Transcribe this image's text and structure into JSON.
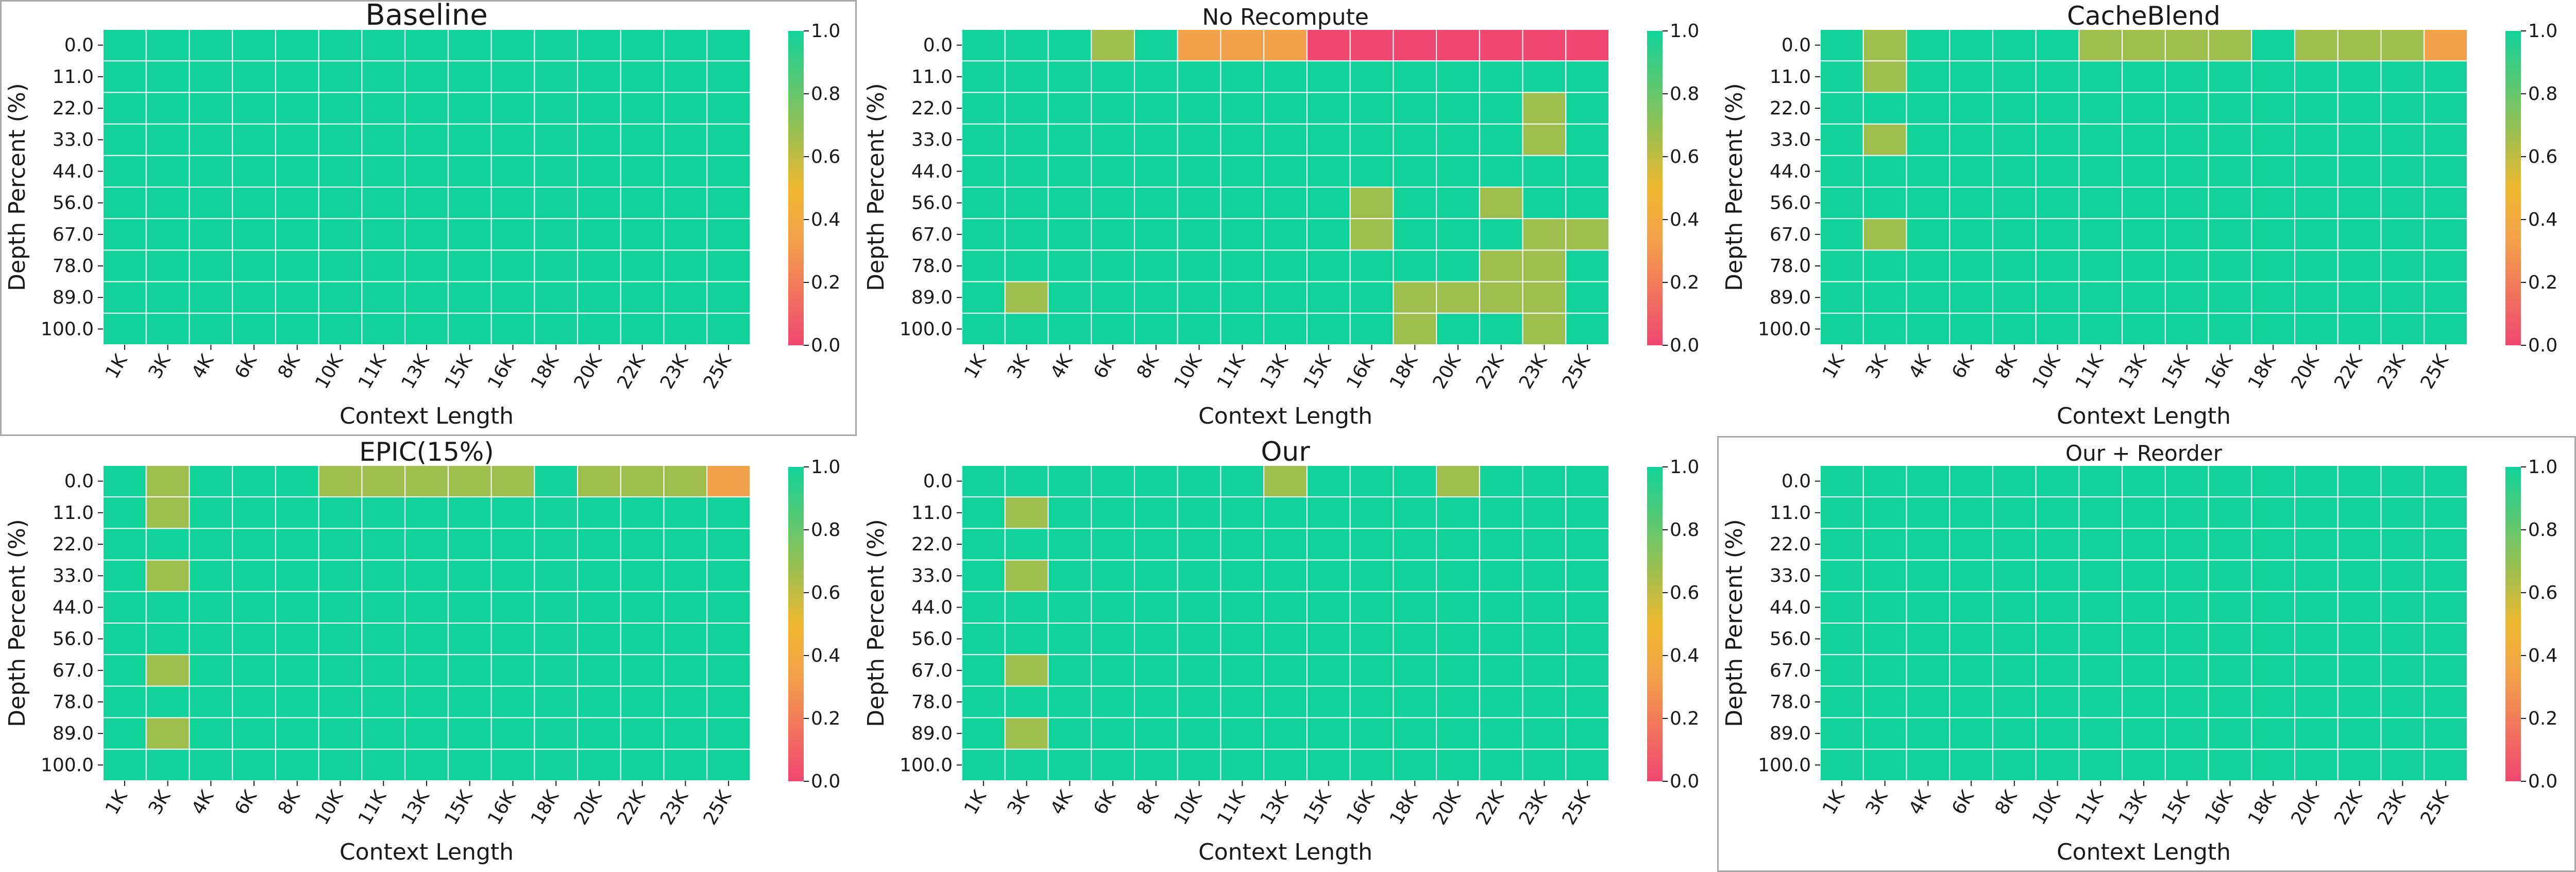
{
  "colors": {
    "cmap": [
      "#f04770",
      "#f3a04a",
      "#f0b82e",
      "#9ebf4e",
      "#10d399"
    ],
    "grid": "#ffffff",
    "text": "#1a1a1a"
  },
  "shared": {
    "xlabel": "Context Length",
    "ylabel": "Depth Percent (%)",
    "x_ticks": [
      "1K",
      "3K",
      "4K",
      "6K",
      "8K",
      "10K",
      "11K",
      "13K",
      "15K",
      "16K",
      "18K",
      "20K",
      "22K",
      "23K",
      "25K"
    ],
    "y_ticks": [
      "0.0",
      "11.0",
      "22.0",
      "33.0",
      "44.0",
      "56.0",
      "67.0",
      "78.0",
      "89.0",
      "100.0"
    ],
    "colorbar_ticks": [
      "0.0",
      "0.2",
      "0.4",
      "0.6",
      "0.8",
      "1.0"
    ],
    "colorbar_range": [
      0,
      1
    ]
  },
  "chart_data": [
    {
      "type": "heatmap",
      "title": "Baseline",
      "values": [
        [
          1,
          1,
          1,
          1,
          1,
          1,
          1,
          1,
          1,
          1,
          1,
          1,
          1,
          1,
          1
        ],
        [
          1,
          1,
          1,
          1,
          1,
          1,
          1,
          1,
          1,
          1,
          1,
          1,
          1,
          1,
          1
        ],
        [
          1,
          1,
          1,
          1,
          1,
          1,
          1,
          1,
          1,
          1,
          1,
          1,
          1,
          1,
          1
        ],
        [
          1,
          1,
          1,
          1,
          1,
          1,
          1,
          1,
          1,
          1,
          1,
          1,
          1,
          1,
          1
        ],
        [
          1,
          1,
          1,
          1,
          1,
          1,
          1,
          1,
          1,
          1,
          1,
          1,
          1,
          1,
          1
        ],
        [
          1,
          1,
          1,
          1,
          1,
          1,
          1,
          1,
          1,
          1,
          1,
          1,
          1,
          1,
          1
        ],
        [
          1,
          1,
          1,
          1,
          1,
          1,
          1,
          1,
          1,
          1,
          1,
          1,
          1,
          1,
          1
        ],
        [
          1,
          1,
          1,
          1,
          1,
          1,
          1,
          1,
          1,
          1,
          1,
          1,
          1,
          1,
          1
        ],
        [
          1,
          1,
          1,
          1,
          1,
          1,
          1,
          1,
          1,
          1,
          1,
          1,
          1,
          1,
          1
        ],
        [
          1,
          1,
          1,
          1,
          1,
          1,
          1,
          1,
          1,
          1,
          1,
          1,
          1,
          1,
          1
        ]
      ]
    },
    {
      "type": "heatmap",
      "title": "No Recompute",
      "values": [
        [
          1,
          1,
          1,
          0.67,
          1,
          0.33,
          0.33,
          0.33,
          0,
          0,
          0,
          0,
          0,
          0,
          0
        ],
        [
          1,
          1,
          1,
          1,
          1,
          1,
          1,
          1,
          1,
          1,
          1,
          1,
          1,
          1,
          1
        ],
        [
          1,
          1,
          1,
          1,
          1,
          1,
          1,
          1,
          1,
          1,
          1,
          1,
          1,
          0.67,
          1
        ],
        [
          1,
          1,
          1,
          1,
          1,
          1,
          1,
          1,
          1,
          1,
          1,
          1,
          1,
          0.67,
          1
        ],
        [
          1,
          1,
          1,
          1,
          1,
          1,
          1,
          1,
          1,
          1,
          1,
          1,
          1,
          1,
          1
        ],
        [
          1,
          1,
          1,
          1,
          1,
          1,
          1,
          1,
          1,
          0.67,
          1,
          1,
          0.67,
          1,
          1
        ],
        [
          1,
          1,
          1,
          1,
          1,
          1,
          1,
          1,
          1,
          0.67,
          1,
          1,
          1,
          0.67,
          0.67
        ],
        [
          1,
          1,
          1,
          1,
          1,
          1,
          1,
          1,
          1,
          1,
          1,
          1,
          0.67,
          0.67,
          1
        ],
        [
          1,
          0.67,
          1,
          1,
          1,
          1,
          1,
          1,
          1,
          1,
          0.67,
          0.67,
          0.67,
          0.67,
          1
        ],
        [
          1,
          1,
          1,
          1,
          1,
          1,
          1,
          1,
          1,
          1,
          0.67,
          1,
          1,
          0.67,
          1
        ]
      ]
    },
    {
      "type": "heatmap",
      "title": "CacheBlend",
      "values": [
        [
          1,
          0.67,
          1,
          1,
          1,
          1,
          0.67,
          0.67,
          0.67,
          0.67,
          1,
          0.67,
          0.67,
          0.67,
          0.33
        ],
        [
          1,
          0.67,
          1,
          1,
          1,
          1,
          1,
          1,
          1,
          1,
          1,
          1,
          1,
          1,
          1
        ],
        [
          1,
          1,
          1,
          1,
          1,
          1,
          1,
          1,
          1,
          1,
          1,
          1,
          1,
          1,
          1
        ],
        [
          1,
          0.67,
          1,
          1,
          1,
          1,
          1,
          1,
          1,
          1,
          1,
          1,
          1,
          1,
          1
        ],
        [
          1,
          1,
          1,
          1,
          1,
          1,
          1,
          1,
          1,
          1,
          1,
          1,
          1,
          1,
          1
        ],
        [
          1,
          1,
          1,
          1,
          1,
          1,
          1,
          1,
          1,
          1,
          1,
          1,
          1,
          1,
          1
        ],
        [
          1,
          0.67,
          1,
          1,
          1,
          1,
          1,
          1,
          1,
          1,
          1,
          1,
          1,
          1,
          1
        ],
        [
          1,
          1,
          1,
          1,
          1,
          1,
          1,
          1,
          1,
          1,
          1,
          1,
          1,
          1,
          1
        ],
        [
          1,
          1,
          1,
          1,
          1,
          1,
          1,
          1,
          1,
          1,
          1,
          1,
          1,
          1,
          1
        ],
        [
          1,
          1,
          1,
          1,
          1,
          1,
          1,
          1,
          1,
          1,
          1,
          1,
          1,
          1,
          1
        ]
      ]
    },
    {
      "type": "heatmap",
      "title": "EPIC(15%)",
      "values": [
        [
          1,
          0.67,
          1,
          1,
          1,
          0.67,
          0.67,
          0.67,
          0.67,
          0.67,
          1,
          0.67,
          0.67,
          0.67,
          0.33
        ],
        [
          1,
          0.67,
          1,
          1,
          1,
          1,
          1,
          1,
          1,
          1,
          1,
          1,
          1,
          1,
          1
        ],
        [
          1,
          1,
          1,
          1,
          1,
          1,
          1,
          1,
          1,
          1,
          1,
          1,
          1,
          1,
          1
        ],
        [
          1,
          0.67,
          1,
          1,
          1,
          1,
          1,
          1,
          1,
          1,
          1,
          1,
          1,
          1,
          1
        ],
        [
          1,
          1,
          1,
          1,
          1,
          1,
          1,
          1,
          1,
          1,
          1,
          1,
          1,
          1,
          1
        ],
        [
          1,
          1,
          1,
          1,
          1,
          1,
          1,
          1,
          1,
          1,
          1,
          1,
          1,
          1,
          1
        ],
        [
          1,
          0.67,
          1,
          1,
          1,
          1,
          1,
          1,
          1,
          1,
          1,
          1,
          1,
          1,
          1
        ],
        [
          1,
          1,
          1,
          1,
          1,
          1,
          1,
          1,
          1,
          1,
          1,
          1,
          1,
          1,
          1
        ],
        [
          1,
          0.67,
          1,
          1,
          1,
          1,
          1,
          1,
          1,
          1,
          1,
          1,
          1,
          1,
          1
        ],
        [
          1,
          1,
          1,
          1,
          1,
          1,
          1,
          1,
          1,
          1,
          1,
          1,
          1,
          1,
          1
        ]
      ]
    },
    {
      "type": "heatmap",
      "title": "Our",
      "values": [
        [
          1,
          1,
          1,
          1,
          1,
          1,
          1,
          0.67,
          1,
          1,
          1,
          0.67,
          1,
          1,
          1
        ],
        [
          1,
          0.67,
          1,
          1,
          1,
          1,
          1,
          1,
          1,
          1,
          1,
          1,
          1,
          1,
          1
        ],
        [
          1,
          1,
          1,
          1,
          1,
          1,
          1,
          1,
          1,
          1,
          1,
          1,
          1,
          1,
          1
        ],
        [
          1,
          0.67,
          1,
          1,
          1,
          1,
          1,
          1,
          1,
          1,
          1,
          1,
          1,
          1,
          1
        ],
        [
          1,
          1,
          1,
          1,
          1,
          1,
          1,
          1,
          1,
          1,
          1,
          1,
          1,
          1,
          1
        ],
        [
          1,
          1,
          1,
          1,
          1,
          1,
          1,
          1,
          1,
          1,
          1,
          1,
          1,
          1,
          1
        ],
        [
          1,
          0.67,
          1,
          1,
          1,
          1,
          1,
          1,
          1,
          1,
          1,
          1,
          1,
          1,
          1
        ],
        [
          1,
          1,
          1,
          1,
          1,
          1,
          1,
          1,
          1,
          1,
          1,
          1,
          1,
          1,
          1
        ],
        [
          1,
          0.67,
          1,
          1,
          1,
          1,
          1,
          1,
          1,
          1,
          1,
          1,
          1,
          1,
          1
        ],
        [
          1,
          1,
          1,
          1,
          1,
          1,
          1,
          1,
          1,
          1,
          1,
          1,
          1,
          1,
          1
        ]
      ]
    },
    {
      "type": "heatmap",
      "title": "Our + Reorder",
      "values": [
        [
          1,
          1,
          1,
          1,
          1,
          1,
          1,
          1,
          1,
          1,
          1,
          1,
          1,
          1,
          1
        ],
        [
          1,
          1,
          1,
          1,
          1,
          1,
          1,
          1,
          1,
          1,
          1,
          1,
          1,
          1,
          1
        ],
        [
          1,
          1,
          1,
          1,
          1,
          1,
          1,
          1,
          1,
          1,
          1,
          1,
          1,
          1,
          1
        ],
        [
          1,
          1,
          1,
          1,
          1,
          1,
          1,
          1,
          1,
          1,
          1,
          1,
          1,
          1,
          1
        ],
        [
          1,
          1,
          1,
          1,
          1,
          1,
          1,
          1,
          1,
          1,
          1,
          1,
          1,
          1,
          1
        ],
        [
          1,
          1,
          1,
          1,
          1,
          1,
          1,
          1,
          1,
          1,
          1,
          1,
          1,
          1,
          1
        ],
        [
          1,
          1,
          1,
          1,
          1,
          1,
          1,
          1,
          1,
          1,
          1,
          1,
          1,
          1,
          1
        ],
        [
          1,
          1,
          1,
          1,
          1,
          1,
          1,
          1,
          1,
          1,
          1,
          1,
          1,
          1,
          1
        ],
        [
          1,
          1,
          1,
          1,
          1,
          1,
          1,
          1,
          1,
          1,
          1,
          1,
          1,
          1,
          1
        ],
        [
          1,
          1,
          1,
          1,
          1,
          1,
          1,
          1,
          1,
          1,
          1,
          1,
          1,
          1,
          1
        ]
      ]
    }
  ]
}
